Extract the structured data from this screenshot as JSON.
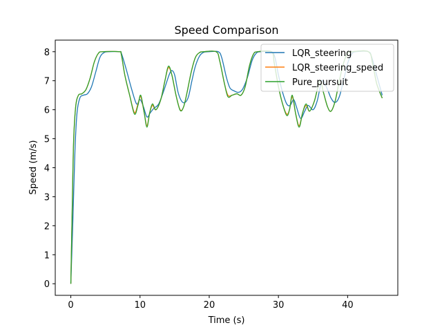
{
  "chart_data": {
    "type": "line",
    "title": "Speed Comparison",
    "xlabel": "Time (s)",
    "ylabel": "Speed (m/s)",
    "xlim": [
      -2.25,
      47.25
    ],
    "ylim": [
      -0.4,
      8.4
    ],
    "xticks": [
      0,
      10,
      20,
      30,
      40
    ],
    "yticks": [
      0,
      1,
      2,
      3,
      4,
      5,
      6,
      7,
      8
    ],
    "grid": false,
    "legend_position": "top-right",
    "series": [
      {
        "name": "LQR_steering",
        "color": "#1f77b4",
        "points": [
          [
            0,
            0
          ],
          [
            0.3,
            2.2
          ],
          [
            0.6,
            4.6
          ],
          [
            0.9,
            5.9
          ],
          [
            1.3,
            6.4
          ],
          [
            1.8,
            6.5
          ],
          [
            2.4,
            6.55
          ],
          [
            3,
            6.8
          ],
          [
            3.6,
            7.3
          ],
          [
            4.2,
            7.8
          ],
          [
            4.8,
            7.97
          ],
          [
            5.5,
            8
          ],
          [
            7,
            8
          ],
          [
            7.3,
            7.95
          ],
          [
            8,
            7.4
          ],
          [
            8.8,
            6.7
          ],
          [
            9.5,
            6.2
          ],
          [
            10,
            6.35
          ],
          [
            10.5,
            6.1
          ],
          [
            11,
            5.75
          ],
          [
            11.5,
            5.9
          ],
          [
            12,
            6.05
          ],
          [
            12.7,
            6.2
          ],
          [
            13.5,
            6.7
          ],
          [
            14.2,
            7.2
          ],
          [
            14.6,
            7.35
          ],
          [
            15,
            7.2
          ],
          [
            15.5,
            6.6
          ],
          [
            16,
            6.3
          ],
          [
            16.5,
            6.25
          ],
          [
            17,
            6.45
          ],
          [
            17.5,
            7.0
          ],
          [
            18,
            7.5
          ],
          [
            18.6,
            7.85
          ],
          [
            19.2,
            7.98
          ],
          [
            20,
            8
          ],
          [
            21.3,
            8
          ],
          [
            21.8,
            7.8
          ],
          [
            22.5,
            7.1
          ],
          [
            23,
            6.75
          ],
          [
            23.6,
            6.65
          ],
          [
            24.2,
            6.6
          ],
          [
            24.8,
            6.7
          ],
          [
            25.5,
            7.1
          ],
          [
            26.2,
            7.7
          ],
          [
            26.8,
            7.95
          ],
          [
            27.5,
            8
          ],
          [
            29,
            8
          ],
          [
            29.5,
            7.8
          ],
          [
            30,
            7.2
          ],
          [
            30.6,
            6.6
          ],
          [
            31.2,
            6.2
          ],
          [
            31.7,
            6.15
          ],
          [
            32.2,
            6.35
          ],
          [
            32.6,
            6.1
          ],
          [
            33.2,
            5.7
          ],
          [
            33.8,
            5.95
          ],
          [
            34.3,
            6.15
          ],
          [
            35,
            6.0
          ],
          [
            35.6,
            6.3
          ],
          [
            36.3,
            7.0
          ],
          [
            37,
            6.75
          ],
          [
            37.6,
            6.4
          ],
          [
            38.2,
            6.25
          ],
          [
            38.8,
            6.45
          ],
          [
            39.5,
            7.1
          ],
          [
            40,
            7.6
          ],
          [
            40.6,
            7.92
          ],
          [
            41.2,
            8
          ],
          [
            43,
            8
          ],
          [
            43.5,
            7.8
          ],
          [
            44.3,
            7.1
          ],
          [
            45,
            6.5
          ]
        ]
      },
      {
        "name": "LQR_steering_speed",
        "color": "#ff7f0e",
        "points": [
          [
            0,
            0
          ],
          [
            0.2,
            2.5
          ],
          [
            0.4,
            4.8
          ],
          [
            0.7,
            6.1
          ],
          [
            1.1,
            6.5
          ],
          [
            1.6,
            6.55
          ],
          [
            2.2,
            6.7
          ],
          [
            2.8,
            7.1
          ],
          [
            3.4,
            7.65
          ],
          [
            4,
            7.95
          ],
          [
            4.6,
            8
          ],
          [
            7,
            8
          ],
          [
            7.3,
            7.9
          ],
          [
            7.8,
            7.2
          ],
          [
            8.5,
            6.5
          ],
          [
            9.2,
            5.9
          ],
          [
            9.7,
            6.2
          ],
          [
            10.1,
            6.45
          ],
          [
            10.6,
            5.9
          ],
          [
            11,
            5.45
          ],
          [
            11.4,
            5.9
          ],
          [
            11.8,
            6.15
          ],
          [
            12.3,
            6.0
          ],
          [
            13,
            6.35
          ],
          [
            13.6,
            7.0
          ],
          [
            14.1,
            7.45
          ],
          [
            14.6,
            7.2
          ],
          [
            15.2,
            6.5
          ],
          [
            15.8,
            6.0
          ],
          [
            16.3,
            6.1
          ],
          [
            16.8,
            6.6
          ],
          [
            17.4,
            7.3
          ],
          [
            18,
            7.8
          ],
          [
            18.6,
            7.97
          ],
          [
            19.2,
            8
          ],
          [
            21,
            8
          ],
          [
            21.5,
            7.7
          ],
          [
            22.2,
            6.9
          ],
          [
            22.7,
            6.5
          ],
          [
            23.3,
            6.5
          ],
          [
            24,
            6.55
          ],
          [
            24.6,
            6.5
          ],
          [
            25.2,
            6.8
          ],
          [
            25.8,
            7.5
          ],
          [
            26.4,
            7.92
          ],
          [
            27,
            8
          ],
          [
            29,
            8
          ],
          [
            29.4,
            7.6
          ],
          [
            30,
            6.8
          ],
          [
            30.6,
            6.2
          ],
          [
            31.2,
            5.85
          ],
          [
            31.6,
            6.0
          ],
          [
            32,
            6.45
          ],
          [
            32.5,
            5.85
          ],
          [
            33,
            5.45
          ],
          [
            33.5,
            5.9
          ],
          [
            34,
            6.15
          ],
          [
            34.5,
            5.95
          ],
          [
            35.2,
            6.3
          ],
          [
            36,
            7.0
          ],
          [
            36.5,
            6.6
          ],
          [
            37.1,
            6.1
          ],
          [
            37.6,
            5.95
          ],
          [
            38.2,
            6.3
          ],
          [
            38.8,
            7.0
          ],
          [
            39.4,
            7.6
          ],
          [
            40,
            7.95
          ],
          [
            40.6,
            8
          ],
          [
            43,
            8
          ],
          [
            43.6,
            7.6
          ],
          [
            44.2,
            6.9
          ],
          [
            45,
            6.4
          ]
        ]
      },
      {
        "name": "Pure_pursuit",
        "color": "#2ca02c",
        "points": [
          [
            0,
            0
          ],
          [
            0.2,
            2.6
          ],
          [
            0.4,
            4.9
          ],
          [
            0.7,
            6.1
          ],
          [
            1.1,
            6.5
          ],
          [
            1.6,
            6.55
          ],
          [
            2.2,
            6.7
          ],
          [
            2.8,
            7.1
          ],
          [
            3.4,
            7.65
          ],
          [
            4,
            7.95
          ],
          [
            4.6,
            8
          ],
          [
            7,
            8
          ],
          [
            7.3,
            7.9
          ],
          [
            7.8,
            7.2
          ],
          [
            8.5,
            6.5
          ],
          [
            9.2,
            5.85
          ],
          [
            9.7,
            6.15
          ],
          [
            10.1,
            6.5
          ],
          [
            10.6,
            5.9
          ],
          [
            11,
            5.4
          ],
          [
            11.4,
            5.9
          ],
          [
            11.8,
            6.2
          ],
          [
            12.3,
            6.0
          ],
          [
            13,
            6.35
          ],
          [
            13.6,
            7.0
          ],
          [
            14.1,
            7.5
          ],
          [
            14.6,
            7.2
          ],
          [
            15.2,
            6.5
          ],
          [
            15.8,
            5.98
          ],
          [
            16.3,
            6.1
          ],
          [
            16.8,
            6.6
          ],
          [
            17.4,
            7.3
          ],
          [
            18,
            7.8
          ],
          [
            18.6,
            7.97
          ],
          [
            19.2,
            8
          ],
          [
            21,
            8
          ],
          [
            21.5,
            7.7
          ],
          [
            22.2,
            6.9
          ],
          [
            22.7,
            6.45
          ],
          [
            23.3,
            6.5
          ],
          [
            24,
            6.55
          ],
          [
            24.6,
            6.5
          ],
          [
            25.2,
            6.8
          ],
          [
            25.8,
            7.5
          ],
          [
            26.4,
            7.92
          ],
          [
            27,
            8
          ],
          [
            29,
            8
          ],
          [
            29.4,
            7.6
          ],
          [
            30,
            6.8
          ],
          [
            30.6,
            6.2
          ],
          [
            31.2,
            5.8
          ],
          [
            31.6,
            6.0
          ],
          [
            32,
            6.5
          ],
          [
            32.5,
            5.85
          ],
          [
            33,
            5.4
          ],
          [
            33.5,
            5.9
          ],
          [
            34,
            6.2
          ],
          [
            34.5,
            5.95
          ],
          [
            35.2,
            6.3
          ],
          [
            36,
            7.0
          ],
          [
            36.5,
            6.6
          ],
          [
            37.1,
            6.1
          ],
          [
            37.6,
            5.95
          ],
          [
            38.2,
            6.3
          ],
          [
            38.8,
            7.0
          ],
          [
            39.4,
            7.6
          ],
          [
            40,
            7.95
          ],
          [
            40.6,
            8
          ],
          [
            43,
            8
          ],
          [
            43.6,
            7.6
          ],
          [
            44.2,
            6.9
          ],
          [
            45,
            6.4
          ]
        ]
      }
    ]
  }
}
